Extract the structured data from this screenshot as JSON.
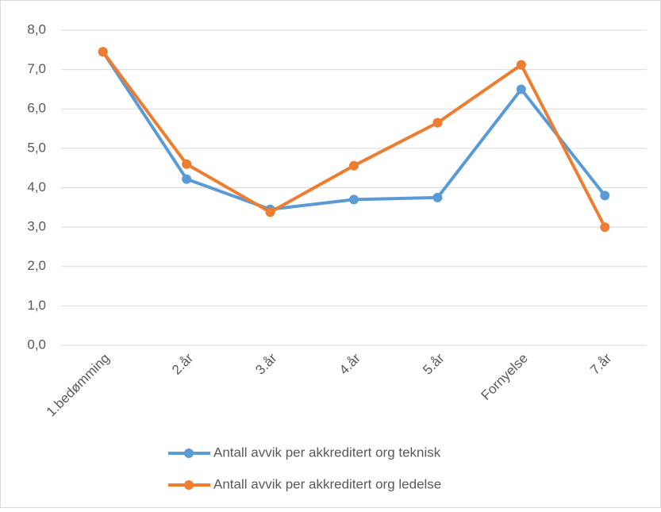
{
  "chart_data": {
    "type": "line",
    "categories": [
      "1.bedømming",
      "2.år",
      "3.år",
      "4.år",
      "5.år",
      "Fornyelse",
      "7.år"
    ],
    "series": [
      {
        "name": "Antall avvik per akkreditert org teknisk",
        "color": "#5b9bd5",
        "values": [
          7.45,
          4.22,
          3.45,
          3.7,
          3.75,
          6.5,
          3.8
        ]
      },
      {
        "name": "Antall avvik per akkreditert org ledelse",
        "color": "#ed7d31",
        "values": [
          7.45,
          4.6,
          3.38,
          4.56,
          5.65,
          7.12,
          3.0
        ]
      }
    ],
    "ylim": [
      0,
      8
    ],
    "yticks": [
      {
        "value": 0,
        "label": "0,0"
      },
      {
        "value": 1,
        "label": "1,0"
      },
      {
        "value": 2,
        "label": "2,0"
      },
      {
        "value": 3,
        "label": "3,0"
      },
      {
        "value": 4,
        "label": "4,0"
      },
      {
        "value": 5,
        "label": "5,0"
      },
      {
        "value": 6,
        "label": "6,0"
      },
      {
        "value": 7,
        "label": "7,0"
      },
      {
        "value": 8,
        "label": "8,0"
      }
    ],
    "grid": true,
    "legend": "bottom"
  }
}
